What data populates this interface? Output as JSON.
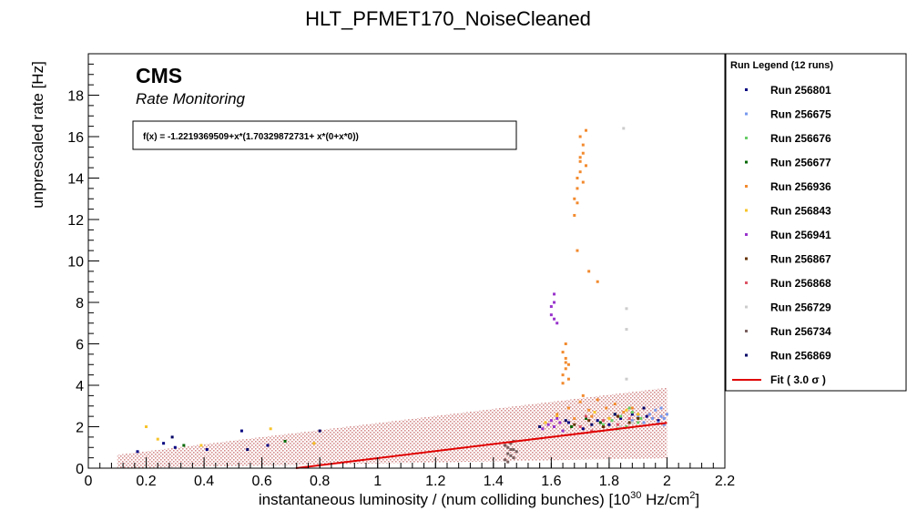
{
  "chart_data": {
    "type": "scatter",
    "title": "HLT_PFMET170_NoiseCleaned",
    "xlabel_main": "instantaneous luminosity / (num colliding bunches) [10",
    "xlabel_sup1": "30",
    "xlabel_mid": " Hz/cm",
    "xlabel_sup2": "2",
    "xlabel_end": "]",
    "ylabel": "unprescaled rate [Hz]",
    "xlim": [
      0,
      2.2
    ],
    "ylim": [
      0,
      20
    ],
    "xticks": [
      "0",
      "0.2",
      "0.4",
      "0.6",
      "0.8",
      "1",
      "1.2",
      "1.4",
      "1.6",
      "1.8",
      "2",
      "2.2"
    ],
    "yticks": [
      "0",
      "2",
      "4",
      "6",
      "8",
      "10",
      "12",
      "14",
      "16",
      "18"
    ],
    "cms_label": "CMS",
    "cms_sublabel": "Rate Monitoring",
    "formula": "f(x) = -1.2219369509+x*(1.70329872731+ x*(0+x*0))",
    "legend_title": "Run Legend (12 runs)",
    "legend_position": "right",
    "fit": {
      "label": "Fit ( 3.0  σ )",
      "color": "#e00000",
      "intercept": -1.2219369509,
      "slope": 1.70329872731,
      "sigma": 3.0,
      "x_range": [
        0.1,
        2.0
      ],
      "band_halfwidth": 1.7
    },
    "series": [
      {
        "name": "Run 256801",
        "color": "#000080",
        "points": [
          [
            0.17,
            0.8
          ],
          [
            0.26,
            1.2
          ],
          [
            0.3,
            1.0
          ],
          [
            0.41,
            0.9
          ],
          [
            0.53,
            1.8
          ],
          [
            0.62,
            1.1
          ],
          [
            1.66,
            2.2
          ],
          [
            1.71,
            1.9
          ],
          [
            1.76,
            2.3
          ],
          [
            1.8,
            2.1
          ],
          [
            1.84,
            2.4
          ],
          [
            1.88,
            2.6
          ],
          [
            1.93,
            2.5
          ],
          [
            1.97,
            2.3
          ]
        ]
      },
      {
        "name": "Run 256675",
        "color": "#7799ee",
        "points": [
          [
            1.88,
            2.3
          ],
          [
            1.9,
            2.5
          ],
          [
            1.92,
            2.2
          ],
          [
            1.94,
            2.6
          ],
          [
            1.95,
            2.4
          ],
          [
            1.96,
            2.8
          ],
          [
            1.97,
            2.2
          ],
          [
            1.98,
            2.5
          ],
          [
            1.98,
            2.9
          ],
          [
            1.99,
            2.1
          ],
          [
            1.99,
            2.4
          ],
          [
            2.0,
            2.6
          ]
        ]
      },
      {
        "name": "Run 256676",
        "color": "#66cc66",
        "points": [
          [
            1.78,
            2.1
          ],
          [
            1.81,
            2.3
          ],
          [
            1.84,
            2.5
          ],
          [
            1.86,
            2.0
          ],
          [
            1.88,
            2.7
          ],
          [
            1.9,
            2.2
          ],
          [
            1.91,
            2.4
          ],
          [
            1.87,
            2.9
          ],
          [
            1.83,
            1.9
          ]
        ]
      },
      {
        "name": "Run 256677",
        "color": "#006600",
        "points": [
          [
            0.33,
            1.1
          ],
          [
            0.68,
            1.3
          ],
          [
            1.67,
            2.0
          ],
          [
            1.72,
            2.4
          ],
          [
            1.77,
            2.2
          ],
          [
            1.82,
            2.6
          ]
        ]
      },
      {
        "name": "Run 256936",
        "color": "#f28a2e",
        "points": [
          [
            1.64,
            4.1
          ],
          [
            1.64,
            4.5
          ],
          [
            1.65,
            4.8
          ],
          [
            1.66,
            5.0
          ],
          [
            1.65,
            5.3
          ],
          [
            1.64,
            5.6
          ],
          [
            1.65,
            6.0
          ],
          [
            1.66,
            4.3
          ],
          [
            1.65,
            5.1
          ],
          [
            1.68,
            12.2
          ],
          [
            1.68,
            13.0
          ],
          [
            1.69,
            13.5
          ],
          [
            1.69,
            14.0
          ],
          [
            1.7,
            14.3
          ],
          [
            1.7,
            14.8
          ],
          [
            1.71,
            15.2
          ],
          [
            1.71,
            15.6
          ],
          [
            1.7,
            16.0
          ],
          [
            1.72,
            16.3
          ],
          [
            1.69,
            12.8
          ],
          [
            1.71,
            13.8
          ],
          [
            1.72,
            14.6
          ],
          [
            1.7,
            15.0
          ],
          [
            1.69,
            10.5
          ],
          [
            1.73,
            9.5
          ],
          [
            1.76,
            9.0
          ],
          [
            1.62,
            2.6
          ],
          [
            1.66,
            2.9
          ],
          [
            1.7,
            3.2
          ],
          [
            1.73,
            2.8
          ],
          [
            1.76,
            3.3
          ],
          [
            1.79,
            2.9
          ],
          [
            1.82,
            3.1
          ],
          [
            1.85,
            2.7
          ],
          [
            1.88,
            2.9
          ],
          [
            1.74,
            2.5
          ],
          [
            1.68,
            2.4
          ],
          [
            1.71,
            3.5
          ]
        ]
      },
      {
        "name": "Run 256843",
        "color": "#f7c42a",
        "points": [
          [
            0.2,
            2.0
          ],
          [
            0.24,
            1.4
          ],
          [
            0.39,
            1.1
          ],
          [
            0.63,
            1.9
          ],
          [
            0.78,
            1.2
          ],
          [
            1.58,
            2.2
          ],
          [
            1.62,
            2.5
          ],
          [
            1.75,
            2.7
          ],
          [
            1.8,
            2.4
          ],
          [
            1.86,
            2.8
          ],
          [
            1.9,
            2.6
          ]
        ]
      },
      {
        "name": "Run 256941",
        "color": "#9933cc",
        "points": [
          [
            1.57,
            1.9
          ],
          [
            1.59,
            2.1
          ],
          [
            1.6,
            2.3
          ],
          [
            1.61,
            2.0
          ],
          [
            1.62,
            2.4
          ],
          [
            1.63,
            2.2
          ],
          [
            1.64,
            1.8
          ],
          [
            1.6,
            7.8
          ],
          [
            1.61,
            8.4
          ],
          [
            1.61,
            7.2
          ],
          [
            1.6,
            7.4
          ],
          [
            1.62,
            7.0
          ],
          [
            1.61,
            8.0
          ]
        ]
      },
      {
        "name": "Run 256867",
        "color": "#663300",
        "points": [
          [
            1.68,
            2.1
          ],
          [
            1.73,
            2.3
          ],
          [
            1.78,
            2.0
          ],
          [
            1.83,
            2.5
          ],
          [
            1.87,
            2.2
          ],
          [
            1.9,
            2.4
          ]
        ]
      },
      {
        "name": "Run 256868",
        "color": "#dd5566",
        "points": [
          [
            1.7,
            2.0
          ],
          [
            1.74,
            1.8
          ],
          [
            1.78,
            2.3
          ],
          [
            1.83,
            2.1
          ],
          [
            1.87,
            2.4
          ],
          [
            1.72,
            2.5
          ]
        ]
      },
      {
        "name": "Run 256729",
        "color": "#cccccc",
        "points": [
          [
            1.85,
            16.4
          ],
          [
            1.86,
            7.7
          ],
          [
            1.86,
            6.7
          ],
          [
            1.86,
            4.3
          ],
          [
            1.84,
            2.0
          ],
          [
            1.88,
            2.2
          ]
        ]
      },
      {
        "name": "Run 256734",
        "color": "#7a6060",
        "points": [
          [
            1.44,
            0.4
          ],
          [
            1.45,
            0.7
          ],
          [
            1.45,
            1.0
          ],
          [
            1.46,
            0.6
          ],
          [
            1.46,
            1.2
          ],
          [
            1.47,
            0.9
          ],
          [
            1.47,
            0.5
          ],
          [
            1.44,
            1.1
          ],
          [
            1.48,
            0.8
          ],
          [
            1.45,
            0.3
          ],
          [
            1.47,
            1.3
          ],
          [
            1.46,
            0.9
          ]
        ]
      },
      {
        "name": "Run 256869",
        "color": "#000066",
        "points": [
          [
            0.29,
            1.5
          ],
          [
            0.55,
            0.9
          ],
          [
            0.8,
            1.8
          ],
          [
            1.56,
            2.0
          ],
          [
            1.65,
            2.3
          ],
          [
            1.74,
            2.1
          ],
          [
            1.82,
            2.6
          ],
          [
            1.92,
            2.9
          ]
        ]
      }
    ]
  }
}
